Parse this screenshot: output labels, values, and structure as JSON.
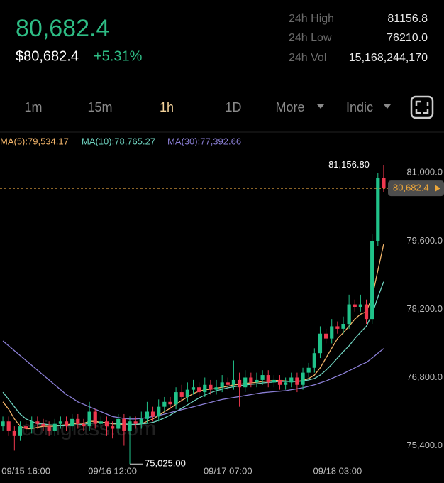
{
  "header": {
    "price": "80,682.4",
    "usd_price": "$80,682.4",
    "change": "+5.31%",
    "stats": [
      {
        "label": "24h High",
        "value": "81156.8"
      },
      {
        "label": "24h Low",
        "value": "76210.0"
      },
      {
        "label": "24h Vol",
        "value": "15,168,244,170"
      }
    ]
  },
  "tabs": [
    "1m",
    "15m",
    "1h",
    "1D",
    "More",
    "Indic"
  ],
  "chart_data": {
    "type": "candlestick",
    "categories": [
      null,
      null,
      null,
      null,
      "09/15 16:00",
      null,
      null,
      null,
      null,
      null,
      null,
      null,
      null,
      null,
      null,
      null,
      null,
      null,
      null,
      "09/16 12:00",
      null,
      null,
      null,
      null,
      null,
      null,
      null,
      null,
      null,
      null,
      null,
      null,
      null,
      null,
      null,
      null,
      null,
      null,
      null,
      "09/17 07:00",
      null,
      null,
      null,
      null,
      null,
      null,
      null,
      null,
      null,
      null,
      null,
      null,
      null,
      null,
      null,
      null,
      null,
      null,
      "09/18 03:00",
      null,
      null,
      null,
      null,
      null,
      null,
      null,
      null
    ],
    "open": [
      75800,
      75900,
      75700,
      75600,
      75800,
      75750,
      75900,
      75850,
      75800,
      75700,
      75850,
      75900,
      75800,
      75950,
      75850,
      75800,
      76100,
      75850,
      75900,
      75800,
      75750,
      75950,
      75700,
      75900,
      75850,
      75950,
      76100,
      76000,
      76200,
      76300,
      76250,
      76500,
      76400,
      76550,
      76600,
      76500,
      76650,
      76550,
      76600,
      76700,
      76650,
      76750,
      76600,
      76800,
      76700,
      76750,
      76850,
      76700,
      76750,
      76650,
      76700,
      76800,
      76650,
      76900,
      77000,
      77300,
      77700,
      77600,
      77850,
      77800,
      77900,
      78300,
      78250,
      78300,
      78000,
      79600,
      80900
    ],
    "high": [
      76000,
      76000,
      75800,
      75900,
      75900,
      76000,
      76000,
      75950,
      75900,
      75950,
      76000,
      76000,
      76050,
      76050,
      75950,
      76300,
      76150,
      76000,
      76000,
      75900,
      76050,
      76050,
      76000,
      76000,
      76100,
      76300,
      76200,
      76350,
      76400,
      76400,
      76600,
      76650,
      76700,
      76750,
      76700,
      76800,
      76750,
      76750,
      76850,
      76800,
      77150,
      76900,
      76950,
      76900,
      76900,
      76950,
      76950,
      76850,
      76850,
      76800,
      76900,
      76900,
      77000,
      77100,
      77400,
      77850,
      77800,
      78000,
      77950,
      78050,
      78500,
      78400,
      78500,
      78400,
      79750,
      81000,
      81156.8
    ],
    "low": [
      75700,
      75600,
      75300,
      75500,
      75650,
      75650,
      75750,
      75700,
      75600,
      75600,
      75750,
      75700,
      75700,
      75750,
      75700,
      75700,
      75750,
      75750,
      75600,
      75550,
      75650,
      75400,
      75025,
      75750,
      75750,
      75850,
      75900,
      75900,
      76100,
      76150,
      76150,
      76300,
      76300,
      76450,
      76400,
      76400,
      76450,
      76450,
      76500,
      76550,
      76550,
      76200,
      76500,
      76600,
      76600,
      76650,
      76600,
      76600,
      76550,
      76550,
      76600,
      76500,
      76550,
      76800,
      76900,
      77200,
      77500,
      77500,
      77700,
      77700,
      77800,
      78150,
      78150,
      77900,
      77900,
      79500,
      80600
    ],
    "close": [
      75900,
      75700,
      75600,
      75800,
      75750,
      75900,
      75850,
      75800,
      75700,
      75850,
      75900,
      75800,
      75950,
      75850,
      75800,
      76100,
      75850,
      75900,
      75800,
      75750,
      75950,
      75700,
      75900,
      75850,
      75950,
      76100,
      76000,
      76200,
      76300,
      76250,
      76500,
      76400,
      76550,
      76600,
      76500,
      76650,
      76550,
      76600,
      76700,
      76650,
      76750,
      76600,
      76800,
      76700,
      76750,
      76850,
      76700,
      76750,
      76650,
      76700,
      76800,
      76650,
      76900,
      77000,
      77300,
      77700,
      77600,
      77850,
      77800,
      77900,
      78300,
      78250,
      78300,
      78000,
      79600,
      80900,
      80682.4
    ],
    "up_color": "#20c38a",
    "down_color": "#f0384f",
    "series": [
      {
        "name": "MA(5):79,534.17",
        "color": "#f3b56a",
        "values": [
          76300,
          76150,
          75950,
          75800,
          75750,
          75750,
          75780,
          75800,
          75800,
          75800,
          75820,
          75830,
          75850,
          75860,
          75860,
          75900,
          75900,
          75880,
          75880,
          75850,
          75850,
          75830,
          75820,
          75830,
          75850,
          75900,
          75950,
          76020,
          76100,
          76170,
          76250,
          76330,
          76400,
          76470,
          76520,
          76550,
          76560,
          76580,
          76600,
          76620,
          76650,
          76660,
          76680,
          76690,
          76700,
          76720,
          76730,
          76740,
          76740,
          76730,
          76720,
          76720,
          76740,
          76780,
          76850,
          77000,
          77200,
          77400,
          77600,
          77720,
          77850,
          78000,
          78100,
          78150,
          78450,
          79000,
          79534.17
        ]
      },
      {
        "name": "MA(10):78,765.27",
        "color": "#6fd3c0",
        "values": [
          76500,
          76350,
          76200,
          76050,
          75950,
          75900,
          75850,
          75850,
          75830,
          75820,
          75810,
          75810,
          75820,
          75830,
          75840,
          75860,
          75870,
          75870,
          75870,
          75860,
          75860,
          75850,
          75840,
          75840,
          75850,
          75860,
          75880,
          75920,
          75970,
          76030,
          76100,
          76170,
          76240,
          76310,
          76380,
          76440,
          76490,
          76530,
          76560,
          76590,
          76610,
          76630,
          76650,
          76660,
          76670,
          76690,
          76700,
          76710,
          76720,
          76720,
          76720,
          76720,
          76730,
          76750,
          76780,
          76850,
          76950,
          77070,
          77200,
          77330,
          77450,
          77600,
          77730,
          77850,
          78100,
          78450,
          78765.27
        ]
      },
      {
        "name": "MA(30):77,392.66",
        "color": "#8b7fd6",
        "values": [
          77550,
          77450,
          77350,
          77250,
          77150,
          77050,
          76950,
          76850,
          76750,
          76650,
          76550,
          76450,
          76380,
          76300,
          76250,
          76200,
          76150,
          76100,
          76050,
          76000,
          75980,
          75960,
          75950,
          75950,
          75960,
          75980,
          76000,
          76020,
          76050,
          76080,
          76110,
          76140,
          76170,
          76200,
          76230,
          76260,
          76290,
          76320,
          76350,
          76370,
          76390,
          76410,
          76430,
          76450,
          76470,
          76490,
          76500,
          76510,
          76520,
          76530,
          76550,
          76570,
          76590,
          76620,
          76650,
          76690,
          76730,
          76780,
          76830,
          76880,
          76940,
          77000,
          77060,
          77110,
          77200,
          77300,
          77392.66
        ]
      }
    ],
    "ylim": [
      75000,
      81500
    ],
    "yticks": [
      {
        "value": 75400,
        "label": "75,400.0"
      },
      {
        "value": 76800,
        "label": "76,800.0"
      },
      {
        "value": 78200,
        "label": "78,200.0"
      },
      {
        "value": 79600,
        "label": "79,600.0"
      },
      {
        "value": 81000,
        "label": "81,000.0"
      }
    ],
    "max_label": "81,156.80",
    "min_label": "75,025.00",
    "current_price": {
      "value": 80682.4,
      "label": "80,682.4"
    },
    "watermark": "coinglass.com"
  }
}
